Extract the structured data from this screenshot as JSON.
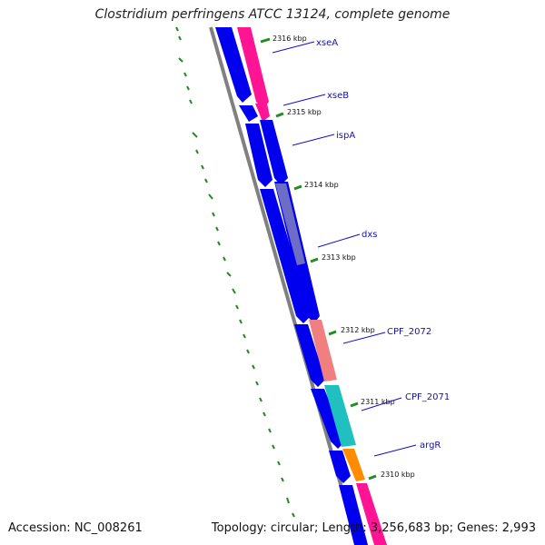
{
  "title": "Clostridium perfringens ATCC 13124, complete genome",
  "footer": {
    "accession": "Accession: NC_008261",
    "stats": "Topology: circular; Length: 3,256,683 bp; Genes: 2,993"
  },
  "kbp_ticks": [
    "2316 kbp",
    "2315 kbp",
    "2314 kbp",
    "2313 kbp",
    "2312 kbp",
    "2311 kbp",
    "2310 kbp"
  ],
  "genes": [
    "xseA",
    "xseB",
    "ispA",
    "dxs",
    "CPF_2072",
    "CPF_2071",
    "argR"
  ],
  "colors": {
    "backbone": "#808080",
    "reverse_strand": "#0000ee",
    "xse_genes": "#ff1493",
    "dxs_overlay": "#8080c0",
    "cpf_2072": "#f08080",
    "cpf_2071": "#20c0c0",
    "argR": "#ff8c00",
    "gene_label": "#1010bb",
    "gc_skew": "#228b22"
  }
}
